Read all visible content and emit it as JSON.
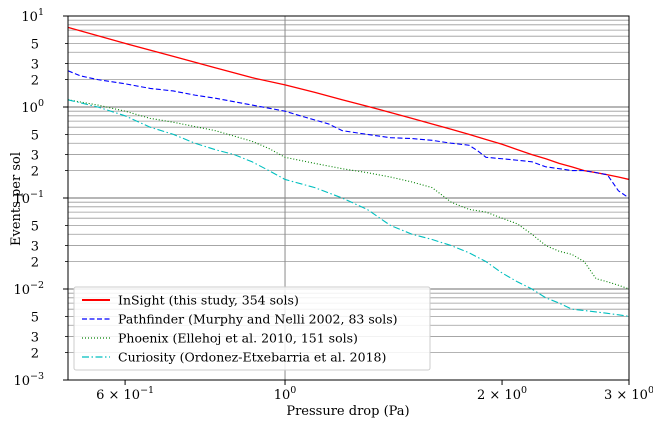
{
  "chart_data": {
    "type": "line",
    "title": "",
    "xlabel": "Pressure drop (Pa)",
    "ylabel": "Events per sol",
    "xscale": "log",
    "yscale": "log",
    "xlim": [
      0.5,
      3.0
    ],
    "ylim": [
      0.001,
      10
    ],
    "grid": "y major+minor, x major",
    "legend_placement": "bottom-left",
    "x_ticks": [
      {
        "value": 0.6,
        "base": "6",
        "exp": "−1"
      },
      {
        "value": 1.0,
        "base": "10",
        "exp": "0"
      },
      {
        "value": 2.0,
        "base": "2",
        "exp": "0"
      },
      {
        "value": 3.0,
        "base": "3",
        "exp": "0"
      }
    ],
    "y_major_ticks": [
      {
        "value": 10,
        "base": "10",
        "exp": "1"
      },
      {
        "value": 1,
        "base": "10",
        "exp": "0"
      },
      {
        "value": 0.1,
        "base": "10",
        "exp": "−1"
      },
      {
        "value": 0.01,
        "base": "10",
        "exp": "−2"
      },
      {
        "value": 0.001,
        "base": "10",
        "exp": "−3"
      }
    ],
    "y_minor_labels": [
      {
        "value": 5,
        "label": "5"
      },
      {
        "value": 3,
        "label": "3"
      },
      {
        "value": 2,
        "label": "2"
      },
      {
        "value": 0.5,
        "label": "5"
      },
      {
        "value": 0.3,
        "label": "3"
      },
      {
        "value": 0.2,
        "label": "2"
      },
      {
        "value": 0.05,
        "label": "5"
      },
      {
        "value": 0.03,
        "label": "3"
      },
      {
        "value": 0.02,
        "label": "2"
      },
      {
        "value": 0.005,
        "label": "5"
      },
      {
        "value": 0.003,
        "label": "3"
      },
      {
        "value": 0.002,
        "label": "2"
      }
    ],
    "series": [
      {
        "name": "InSight (this study, 354 sols)",
        "color": "#ff0000",
        "style": "solid",
        "x": [
          0.5,
          0.6,
          0.7,
          0.8,
          0.9,
          1.0,
          1.1,
          1.2,
          1.3,
          1.4,
          1.5,
          1.6,
          1.7,
          1.8,
          1.9,
          2.0,
          2.1,
          2.2,
          2.3,
          2.4,
          2.5,
          2.6,
          2.7,
          2.8,
          2.9,
          3.0
        ],
        "y": [
          7.5,
          5.0,
          3.6,
          2.7,
          2.1,
          1.75,
          1.45,
          1.2,
          1.02,
          0.87,
          0.75,
          0.65,
          0.57,
          0.5,
          0.44,
          0.39,
          0.34,
          0.3,
          0.27,
          0.24,
          0.22,
          0.2,
          0.19,
          0.18,
          0.17,
          0.16
        ]
      },
      {
        "name": "Pathfinder (Murphy and Nelli 2002, 83 sols)",
        "color": "#0000ff",
        "style": "dashed",
        "x": [
          0.5,
          0.52,
          0.55,
          0.6,
          0.65,
          0.7,
          0.75,
          0.8,
          0.9,
          1.0,
          1.05,
          1.1,
          1.15,
          1.2,
          1.3,
          1.4,
          1.5,
          1.6,
          1.7,
          1.8,
          1.85,
          1.9,
          2.0,
          2.1,
          2.2,
          2.3,
          2.4,
          2.5,
          2.6,
          2.7,
          2.8,
          2.9,
          3.0
        ],
        "y": [
          2.5,
          2.2,
          2.0,
          1.8,
          1.6,
          1.5,
          1.35,
          1.25,
          1.05,
          0.9,
          0.8,
          0.72,
          0.65,
          0.55,
          0.5,
          0.46,
          0.45,
          0.43,
          0.4,
          0.38,
          0.33,
          0.28,
          0.27,
          0.26,
          0.25,
          0.22,
          0.21,
          0.2,
          0.2,
          0.19,
          0.18,
          0.12,
          0.1
        ]
      },
      {
        "name": "Phoenix (Ellehoj et al. 2010, 151 sols)",
        "color": "#008000",
        "style": "dotted",
        "x": [
          0.5,
          0.55,
          0.6,
          0.65,
          0.7,
          0.8,
          0.9,
          0.95,
          1.0,
          1.1,
          1.2,
          1.3,
          1.4,
          1.5,
          1.6,
          1.7,
          1.8,
          1.9,
          2.0,
          2.1,
          2.2,
          2.3,
          2.4,
          2.5,
          2.6,
          2.7,
          2.8,
          2.9,
          3.0
        ],
        "y": [
          1.2,
          1.05,
          0.9,
          0.75,
          0.68,
          0.55,
          0.42,
          0.35,
          0.28,
          0.24,
          0.21,
          0.19,
          0.17,
          0.15,
          0.13,
          0.09,
          0.075,
          0.07,
          0.06,
          0.052,
          0.04,
          0.03,
          0.026,
          0.024,
          0.02,
          0.013,
          0.012,
          0.011,
          0.01
        ]
      },
      {
        "name": "Curiosity (Ordonez-Etxebarria et al. 2018)",
        "color": "#00bfbf",
        "style": "dashdot",
        "x": [
          0.5,
          0.55,
          0.6,
          0.65,
          0.7,
          0.75,
          0.8,
          0.85,
          0.9,
          0.95,
          1.0,
          1.1,
          1.2,
          1.3,
          1.4,
          1.5,
          1.6,
          1.7,
          1.8,
          1.9,
          2.0,
          2.1,
          2.2,
          2.3,
          2.4,
          2.5,
          2.6,
          2.7,
          2.8,
          2.9,
          3.0
        ],
        "y": [
          1.2,
          1.0,
          0.8,
          0.6,
          0.5,
          0.4,
          0.34,
          0.3,
          0.25,
          0.2,
          0.16,
          0.13,
          0.1,
          0.075,
          0.05,
          0.04,
          0.035,
          0.03,
          0.025,
          0.02,
          0.015,
          0.012,
          0.01,
          0.008,
          0.007,
          0.006,
          0.0058,
          0.0056,
          0.0054,
          0.0052,
          0.005
        ]
      }
    ]
  }
}
